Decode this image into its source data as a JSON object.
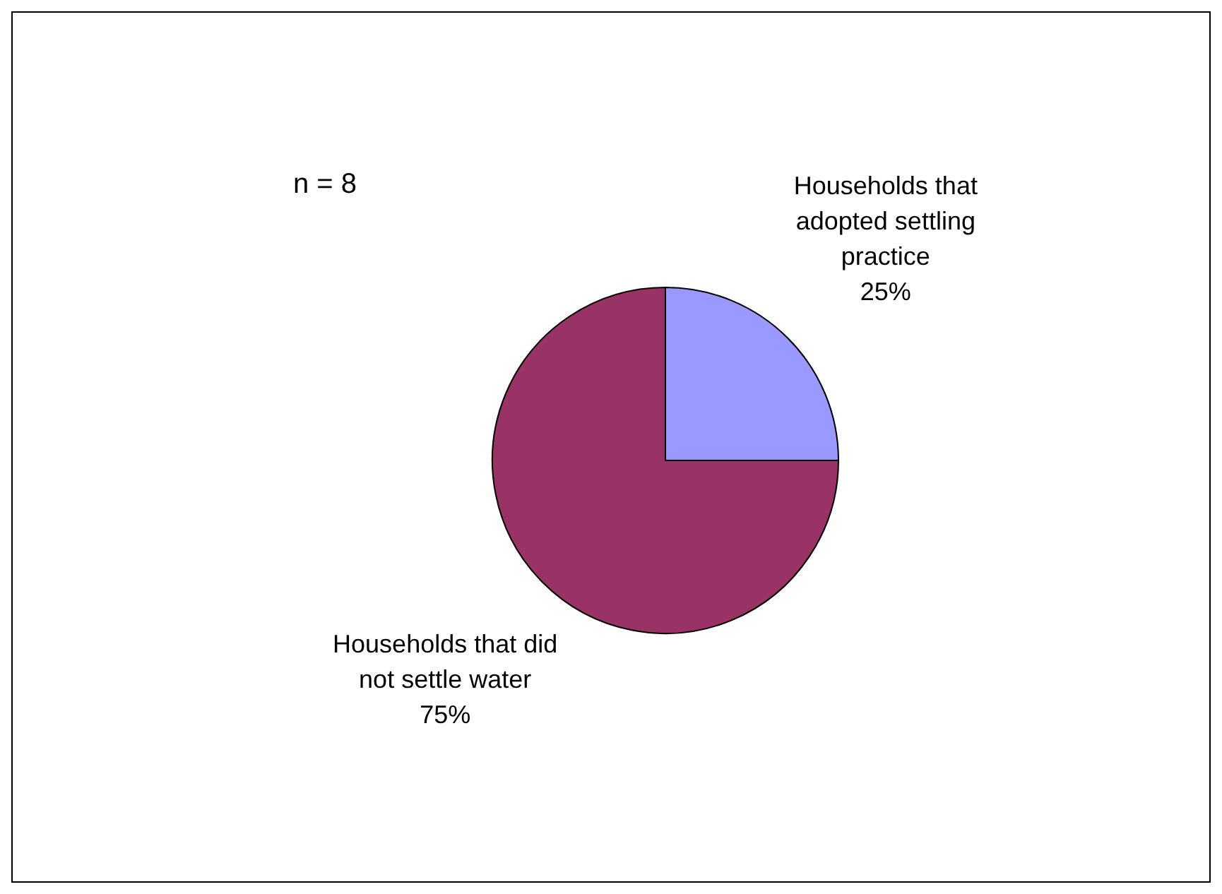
{
  "chart_data": {
    "type": "pie",
    "categories": [
      "Households that adopted settling practice",
      "Households that did not settle water"
    ],
    "values": [
      25,
      75
    ],
    "colors": [
      "#9999ff",
      "#993366"
    ],
    "value_labels": [
      "25%",
      "75%"
    ],
    "annotations": [
      "n = 8"
    ],
    "legend": false
  }
}
